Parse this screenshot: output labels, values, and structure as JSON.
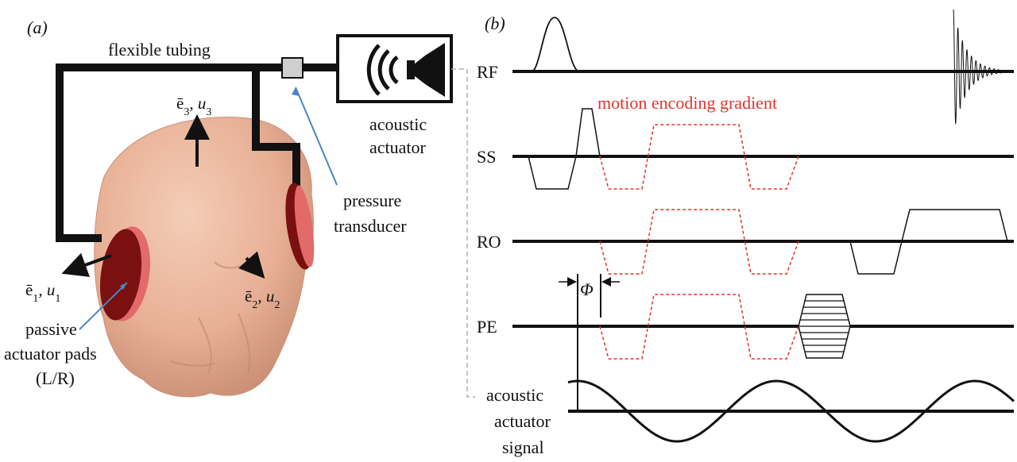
{
  "panel_a": {
    "panel_label": "(a)",
    "tubing_label": "flexible tubing",
    "actuator_label_line1": "acoustic",
    "actuator_label_line2": "actuator",
    "transducer_label_line1": "pressure",
    "transducer_label_line2": "transducer",
    "pads_label_line1": "passive",
    "pads_label_line2": "actuator pads",
    "pads_label_line3": "(L/R)",
    "e3_label": "ē",
    "e3_sub": "3",
    "e3_comp": ", u",
    "e3_comp_sub": "3",
    "e1_label": "ē",
    "e1_sub": "1",
    "e1_comp": ", u",
    "e1_comp_sub": "1",
    "e2_label": "ē",
    "e2_sub": "2",
    "e2_comp": ", u",
    "e2_comp_sub": "2"
  },
  "panel_b": {
    "panel_label": "(b)",
    "rows": [
      "RF",
      "SS",
      "RO",
      "PE"
    ],
    "meg_label": "motion encoding gradient",
    "phase_label": "Φ",
    "signal_label_line1": "acoustic",
    "signal_label_line2": "actuator",
    "signal_label_line3": "signal"
  },
  "colors": {
    "head": "#eab49a",
    "pad": "#7a1010",
    "pad_rim": "#e05e5e",
    "meg": "#e0342f",
    "leader": "#4a86c5",
    "dashed_connector": "#b0b0b0"
  }
}
